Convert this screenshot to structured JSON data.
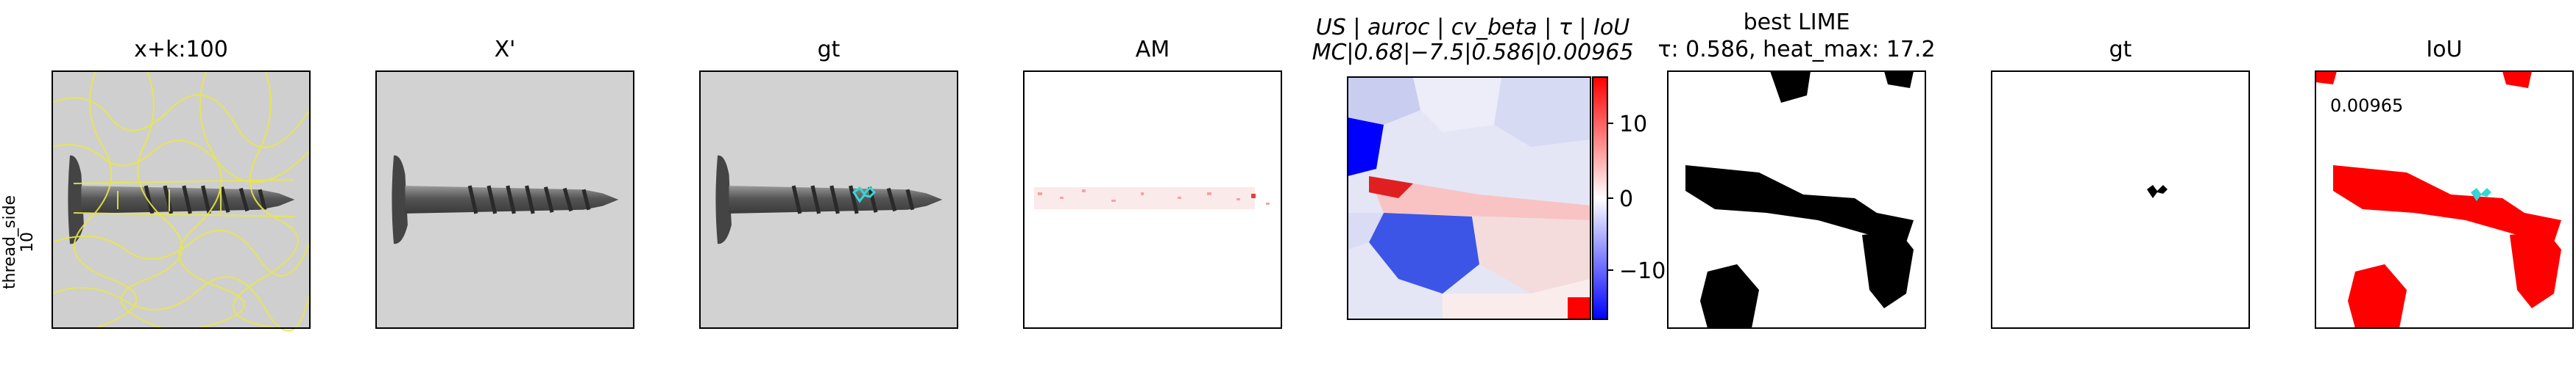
{
  "row_label": {
    "line1": "thread_side",
    "line2": "10"
  },
  "panels": {
    "p1": {
      "title": "x+k:100"
    },
    "p2": {
      "title": "X'"
    },
    "p3": {
      "title": "gt"
    },
    "p4": {
      "title": "AM"
    },
    "p5": {
      "title_line1": "US | auroc | cv_beta | τ | IoU",
      "title_line2": "MC|0.68|−7.5|0.586|0.00965",
      "colorbar_ticks": [
        "10",
        "0",
        "−10"
      ]
    },
    "p6": {
      "title_line1": "best LIME",
      "title_line2": "τ: 0.586, heat_max: 17.2"
    },
    "p7": {
      "title": "gt"
    },
    "p8": {
      "title": "IoU",
      "value_label": "0.00965"
    }
  },
  "colors": {
    "superpixel_outline": "#e8e84a",
    "gt_mask": "#35d6d6",
    "iou_red": "#ff0000",
    "mask_black": "#000000",
    "colormap": [
      "#0000ff",
      "#ffffff",
      "#ff0000"
    ]
  }
}
